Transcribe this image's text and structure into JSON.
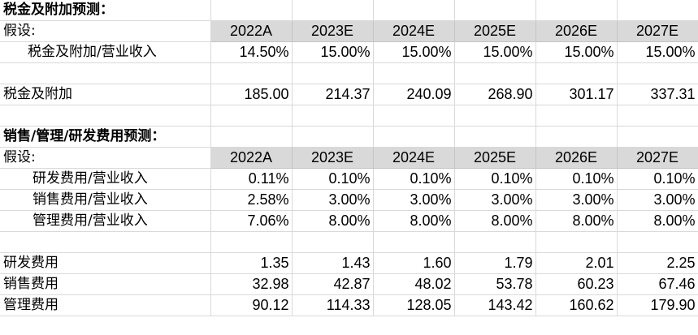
{
  "section1": {
    "title": "税金及附加预测：",
    "assumption_label": "假设:",
    "years": [
      "2022A",
      "2023E",
      "2024E",
      "2025E",
      "2026E",
      "2027E"
    ],
    "ratio_row": {
      "label": "税金及附加/营业收入",
      "values": [
        "14.50%",
        "15.00%",
        "15.00%",
        "15.00%",
        "15.00%",
        "15.00%"
      ]
    },
    "amount_row": {
      "label": "税金及附加",
      "values": [
        "185.00",
        "214.37",
        "240.09",
        "268.90",
        "301.17",
        "337.31"
      ]
    }
  },
  "section2": {
    "title": "销售/管理/研发费用预测：",
    "assumption_label": "假设:",
    "years": [
      "2022A",
      "2023E",
      "2024E",
      "2025E",
      "2026E",
      "2027E"
    ],
    "ratio_rows": [
      {
        "label": "研发费用/营业收入",
        "values": [
          "0.11%",
          "0.10%",
          "0.10%",
          "0.10%",
          "0.10%",
          "0.10%"
        ]
      },
      {
        "label": "销售费用/营业收入",
        "values": [
          "2.58%",
          "3.00%",
          "3.00%",
          "3.00%",
          "3.00%",
          "3.00%"
        ]
      },
      {
        "label": "管理费用/营业收入",
        "values": [
          "7.06%",
          "8.00%",
          "8.00%",
          "8.00%",
          "8.00%",
          "8.00%"
        ]
      }
    ],
    "amount_rows": [
      {
        "label": "研发费用",
        "values": [
          "1.35",
          "1.43",
          "1.60",
          "1.79",
          "2.01",
          "2.25"
        ]
      },
      {
        "label": "销售费用",
        "values": [
          "32.98",
          "42.87",
          "48.02",
          "53.78",
          "60.23",
          "67.46"
        ]
      },
      {
        "label": "管理费用",
        "values": [
          "90.12",
          "114.33",
          "128.05",
          "143.42",
          "160.62",
          "179.90"
        ]
      }
    ]
  }
}
